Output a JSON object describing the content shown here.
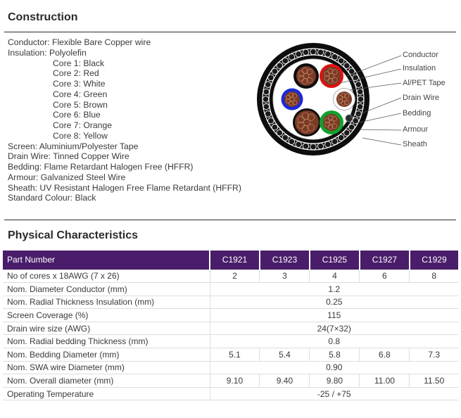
{
  "construction": {
    "title": "Construction",
    "lines": [
      "Conductor: Flexible Bare Copper wire",
      "Insulation: Polyolefin"
    ],
    "cores": [
      "Core 1: Black",
      "Core 2: Red",
      "Core 3: White",
      "Core 4: Green",
      "Core 5: Brown",
      "Core 6: Blue",
      "Core 7: Orange",
      "Core 8: Yellow"
    ],
    "more_lines": [
      "Screen: Aluminium/Polyester Tape",
      "Drain Wire: Tinned Copper Wire",
      "Bedding: Flame Retardant Halogen Free (HFFR)",
      "Armour: Galvanized Steel Wire",
      "Sheath: UV Resistant Halogen Free Flame Retardant (HFFR)",
      "Standard Colour: Black"
    ],
    "diagram_labels": {
      "conductor": "Conductor",
      "insulation": "Insulation",
      "tape": "Al/PET Tape",
      "drain": "Drain Wire",
      "bedding": "Bedding",
      "armour": "Armour",
      "sheath": "Sheath"
    },
    "diagram_colors": {
      "sheath": "#0d0d0d",
      "armour_ring": "#ffffff",
      "core_brown": "#7a3a24",
      "core_red": "#e01010",
      "core_blue": "#1a2ad8",
      "core_green": "#12a030",
      "core_white": "#ffffff"
    }
  },
  "physical": {
    "title": "Physical Characteristics",
    "header": [
      "Part Number",
      "C1921",
      "C1923",
      "C1925",
      "C1927",
      "C1929"
    ],
    "rows": [
      {
        "label": "No of cores x 18AWG (7 x 26)",
        "values": [
          "2",
          "3",
          "4",
          "6",
          "8"
        ]
      },
      {
        "label": "Nom. Diameter Conductor (mm)",
        "span": "1.2"
      },
      {
        "label": "Nom. Radial Thickness Insulation (mm)",
        "span": "0.25"
      },
      {
        "label": "Screen Coverage (%)",
        "span": "115"
      },
      {
        "label": "Drain wire size (AWG)",
        "span": "24(7×32)"
      },
      {
        "label": "Nom. Radial bedding Thickness (mm)",
        "span": "0.8"
      },
      {
        "label": "Nom. Bedding Diameter (mm)",
        "values": [
          "5.1",
          "5.4",
          "5.8",
          "6.8",
          "7.3"
        ]
      },
      {
        "label": "Nom. SWA wire Diameter (mm)",
        "span": "0.90"
      },
      {
        "label": "Nom. Overall diameter (mm)",
        "values": [
          "9.10",
          "9.40",
          "9.80",
          "11.00",
          "11.50"
        ]
      },
      {
        "label": "Operating Temperature",
        "span": "-25 / +75"
      }
    ],
    "header_color": "#4a1d6a"
  }
}
